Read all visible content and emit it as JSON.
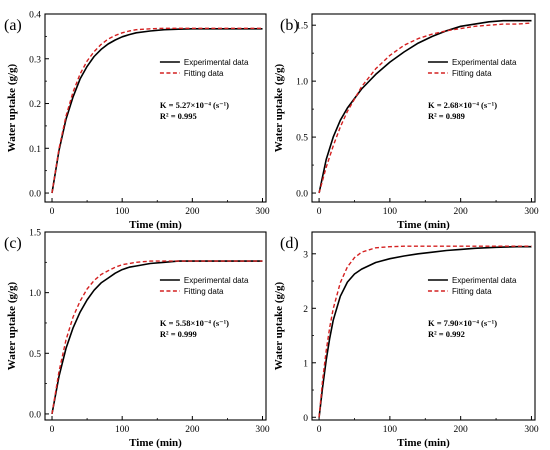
{
  "colors": {
    "experimental": "#000000",
    "fitting": "#d42020",
    "frame": "#000000"
  },
  "chart_data": [
    {
      "type": "line",
      "panel_label": "(a)",
      "xlabel": "Time (min)",
      "ylabel": "Water uptake (g/g)",
      "xlim": [
        -10,
        305
      ],
      "ylim": [
        -0.02,
        0.4
      ],
      "xticks": [
        0,
        100,
        200,
        300
      ],
      "yticks": [
        0.0,
        0.1,
        0.2,
        0.3,
        0.4
      ],
      "ytick_labels": [
        "0.0",
        "0.1",
        "0.2",
        "0.3",
        "0.4"
      ],
      "legend_position": "top-right",
      "annotation": {
        "k_text": "K = 5.27×10⁻⁴ (s⁻¹)",
        "r2_text": "R² = 0.995"
      },
      "series": [
        {
          "name": "Experimental data",
          "style": "solid",
          "color": "#000000",
          "x": [
            0,
            10,
            20,
            30,
            40,
            50,
            60,
            70,
            80,
            90,
            100,
            110,
            120,
            140,
            160,
            180,
            200,
            220,
            250,
            280,
            300
          ],
          "values": [
            0.0,
            0.095,
            0.165,
            0.215,
            0.255,
            0.283,
            0.305,
            0.321,
            0.333,
            0.342,
            0.349,
            0.354,
            0.358,
            0.362,
            0.365,
            0.366,
            0.367,
            0.367,
            0.367,
            0.367,
            0.367
          ]
        },
        {
          "name": "Fitting data",
          "style": "dashed",
          "color": "#d42020",
          "x": [
            0,
            10,
            20,
            30,
            40,
            50,
            60,
            70,
            80,
            90,
            100,
            110,
            120,
            140,
            160,
            180,
            200,
            220,
            250,
            280,
            300
          ],
          "values": [
            0.0,
            0.099,
            0.172,
            0.226,
            0.266,
            0.295,
            0.316,
            0.332,
            0.344,
            0.352,
            0.358,
            0.362,
            0.365,
            0.367,
            0.368,
            0.368,
            0.368,
            0.368,
            0.368,
            0.368,
            0.368
          ]
        }
      ]
    },
    {
      "type": "line",
      "panel_label": "(b)",
      "xlabel": "Time (min)",
      "ylabel": "Water uptake (g/g)",
      "xlim": [
        -10,
        305
      ],
      "ylim": [
        -0.08,
        1.6
      ],
      "xticks": [
        0,
        100,
        200,
        300
      ],
      "yticks": [
        0.0,
        0.5,
        1.0,
        1.5
      ],
      "ytick_labels": [
        "0.0",
        "0.5",
        "1.0",
        "1.5"
      ],
      "legend_position": "top-right",
      "annotation": {
        "k_text": "K = 2.68×10⁻⁴ (s⁻¹)",
        "r2_text": "R² = 0.989"
      },
      "series": [
        {
          "name": "Experimental data",
          "style": "solid",
          "color": "#000000",
          "x": [
            0,
            10,
            20,
            30,
            40,
            60,
            80,
            100,
            120,
            140,
            160,
            180,
            200,
            220,
            240,
            260,
            280,
            300
          ],
          "values": [
            0.0,
            0.3,
            0.5,
            0.65,
            0.76,
            0.93,
            1.06,
            1.17,
            1.26,
            1.34,
            1.4,
            1.45,
            1.49,
            1.51,
            1.53,
            1.54,
            1.54,
            1.54
          ]
        },
        {
          "name": "Fitting data",
          "style": "dashed",
          "color": "#d42020",
          "x": [
            0,
            10,
            20,
            30,
            40,
            60,
            80,
            100,
            120,
            140,
            160,
            180,
            200,
            220,
            240,
            260,
            280,
            300
          ],
          "values": [
            0.0,
            0.23,
            0.42,
            0.59,
            0.73,
            0.95,
            1.11,
            1.23,
            1.32,
            1.38,
            1.42,
            1.45,
            1.47,
            1.49,
            1.5,
            1.51,
            1.51,
            1.52
          ]
        }
      ]
    },
    {
      "type": "line",
      "panel_label": "(c)",
      "xlabel": "Time (min)",
      "ylabel": "Water uptake (g/g)",
      "xlim": [
        -10,
        305
      ],
      "ylim": [
        -0.05,
        1.5
      ],
      "xticks": [
        0,
        100,
        200,
        300
      ],
      "yticks": [
        0.0,
        0.5,
        1.0,
        1.5
      ],
      "ytick_labels": [
        "0.0",
        "0.5",
        "1.0",
        "1.5"
      ],
      "legend_position": "top-right",
      "annotation": {
        "k_text": "K = 5.58×10⁻⁴ (s⁻¹)",
        "r2_text": "R² = 0.999"
      },
      "series": [
        {
          "name": "Experimental data",
          "style": "solid",
          "color": "#000000",
          "x": [
            0,
            10,
            20,
            30,
            40,
            50,
            60,
            70,
            80,
            90,
            100,
            110,
            120,
            140,
            160,
            180,
            200,
            220,
            250,
            280,
            300
          ],
          "values": [
            0.0,
            0.31,
            0.54,
            0.71,
            0.84,
            0.94,
            1.02,
            1.08,
            1.12,
            1.16,
            1.19,
            1.21,
            1.22,
            1.24,
            1.25,
            1.26,
            1.26,
            1.26,
            1.26,
            1.26,
            1.26
          ]
        },
        {
          "name": "Fitting data",
          "style": "dashed",
          "color": "#d42020",
          "x": [
            0,
            10,
            20,
            30,
            40,
            50,
            60,
            70,
            80,
            90,
            100,
            110,
            120,
            140,
            160,
            180,
            200,
            220,
            250,
            280,
            300
          ],
          "values": [
            0.0,
            0.35,
            0.61,
            0.8,
            0.93,
            1.03,
            1.1,
            1.15,
            1.18,
            1.21,
            1.23,
            1.24,
            1.25,
            1.26,
            1.26,
            1.26,
            1.26,
            1.26,
            1.26,
            1.26,
            1.26
          ]
        }
      ]
    },
    {
      "type": "line",
      "panel_label": "(d)",
      "xlabel": "Time (min)",
      "ylabel": "Water uptake (g/g)",
      "xlim": [
        -10,
        305
      ],
      "ylim": [
        -0.05,
        3.4
      ],
      "xticks": [
        0,
        100,
        200,
        300
      ],
      "yticks": [
        0,
        1,
        2,
        3
      ],
      "ytick_labels": [
        "0",
        "1",
        "2",
        "3"
      ],
      "legend_position": "top-right",
      "annotation": {
        "k_text": "K = 7.90×10⁻⁴ (s⁻¹)",
        "r2_text": "R² = 0.992"
      },
      "series": [
        {
          "name": "Experimental data",
          "style": "solid",
          "color": "#000000",
          "x": [
            0,
            5,
            10,
            15,
            20,
            30,
            40,
            50,
            60,
            80,
            100,
            120,
            140,
            160,
            180,
            200,
            220,
            250,
            280,
            300
          ],
          "values": [
            0.0,
            0.55,
            1.05,
            1.45,
            1.78,
            2.22,
            2.48,
            2.63,
            2.72,
            2.84,
            2.91,
            2.96,
            3.0,
            3.03,
            3.06,
            3.08,
            3.1,
            3.12,
            3.13,
            3.13
          ]
        },
        {
          "name": "Fitting data",
          "style": "dashed",
          "color": "#d42020",
          "x": [
            0,
            5,
            10,
            15,
            20,
            30,
            40,
            50,
            60,
            80,
            100,
            120,
            140,
            160,
            180,
            200,
            220,
            250,
            280,
            300
          ],
          "values": [
            0.0,
            0.68,
            1.22,
            1.65,
            1.99,
            2.47,
            2.76,
            2.93,
            3.03,
            3.11,
            3.13,
            3.14,
            3.14,
            3.14,
            3.14,
            3.14,
            3.14,
            3.14,
            3.14,
            3.14
          ]
        }
      ]
    }
  ]
}
